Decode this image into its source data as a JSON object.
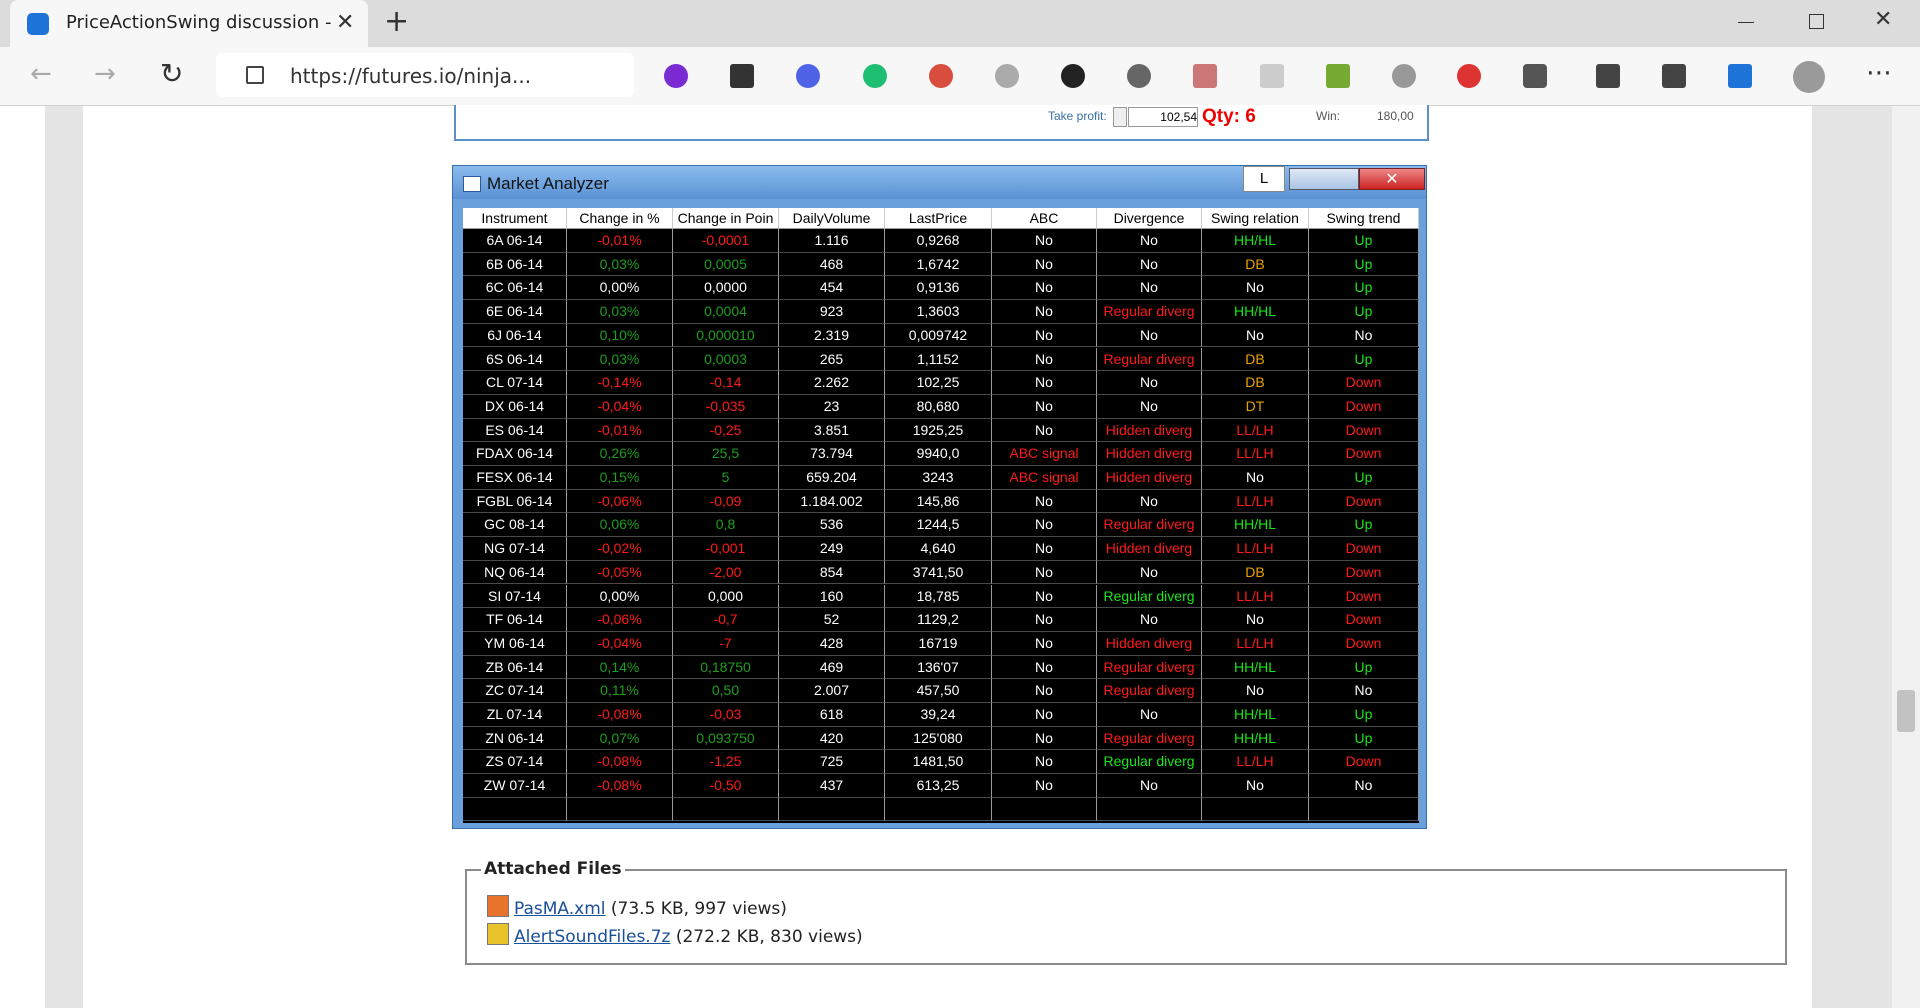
{
  "browser": {
    "tab_title": "PriceActionSwing discussion - fu",
    "url": "https://futures.io/ninja..."
  },
  "order_panel": {
    "take_profit_label": "Take profit:",
    "take_profit": "102,54",
    "qty": "Qty: 6",
    "win_label": "Win:",
    "win": "180,00"
  },
  "market_analyzer": {
    "title": "Market Analyzer",
    "button": "L",
    "columns": [
      "Instrument",
      "Change in %",
      "Change in Poin",
      "DailyVolume",
      "LastPrice",
      "ABC",
      "Divergence",
      "Swing relation",
      "Swing trend"
    ],
    "rows": [
      [
        "6A 06-14",
        {
          "text": "-0,01%",
          "color": "#ff1a1a"
        },
        {
          "text": "-0,0001",
          "color": "#ff1a1a"
        },
        "1.116",
        "0,9268",
        "No",
        "No",
        {
          "text": "HH/HL",
          "color": "#19e619"
        },
        {
          "text": "Up",
          "color": "#19e619"
        }
      ],
      [
        "6B 06-14",
        {
          "text": "0,03%",
          "color": "#1e9e1e"
        },
        {
          "text": "0,0005",
          "color": "#1e9e1e"
        },
        "468",
        "1,6742",
        "No",
        "No",
        {
          "text": "DB",
          "color": "#e8a200"
        },
        {
          "text": "Up",
          "color": "#19e619"
        }
      ],
      [
        "6C 06-14",
        "0,00%",
        "0,0000",
        "454",
        "0,9136",
        "No",
        "No",
        "No",
        {
          "text": "Up",
          "color": "#19e619"
        }
      ],
      [
        "6E 06-14",
        {
          "text": "0,03%",
          "color": "#1e9e1e"
        },
        {
          "text": "0,0004",
          "color": "#1e9e1e"
        },
        "923",
        "1,3603",
        "No",
        {
          "text": "Regular diverg",
          "color": "#ff1a1a"
        },
        {
          "text": "HH/HL",
          "color": "#19e619"
        },
        {
          "text": "Up",
          "color": "#19e619"
        }
      ],
      [
        "6J 06-14",
        {
          "text": "0,10%",
          "color": "#1e9e1e"
        },
        {
          "text": "0,000010",
          "color": "#1e9e1e"
        },
        "2.319",
        "0,009742",
        "No",
        "No",
        "No",
        "No"
      ],
      [
        "6S 06-14",
        {
          "text": "0,03%",
          "color": "#1e9e1e"
        },
        {
          "text": "0,0003",
          "color": "#1e9e1e"
        },
        "265",
        "1,1152",
        "No",
        {
          "text": "Regular diverg",
          "color": "#ff1a1a"
        },
        {
          "text": "DB",
          "color": "#e8a200"
        },
        {
          "text": "Up",
          "color": "#19e619"
        }
      ],
      [
        "CL 07-14",
        {
          "text": "-0,14%",
          "color": "#ff1a1a"
        },
        {
          "text": "-0,14",
          "color": "#ff1a1a"
        },
        "2.262",
        "102,25",
        "No",
        "No",
        {
          "text": "DB",
          "color": "#e8a200"
        },
        {
          "text": "Down",
          "color": "#ff1a1a"
        }
      ],
      [
        "DX 06-14",
        {
          "text": "-0,04%",
          "color": "#ff1a1a"
        },
        {
          "text": "-0,035",
          "color": "#ff1a1a"
        },
        "23",
        "80,680",
        "No",
        "No",
        {
          "text": "DT",
          "color": "#e8a200"
        },
        {
          "text": "Down",
          "color": "#ff1a1a"
        }
      ],
      [
        "ES 06-14",
        {
          "text": "-0,01%",
          "color": "#ff1a1a"
        },
        {
          "text": "-0,25",
          "color": "#ff1a1a"
        },
        "3.851",
        "1925,25",
        "No",
        {
          "text": "Hidden diverg",
          "color": "#ff1a1a"
        },
        {
          "text": "LL/LH",
          "color": "#ff1a1a"
        },
        {
          "text": "Down",
          "color": "#ff1a1a"
        }
      ],
      [
        "FDAX 06-14",
        {
          "text": "0,26%",
          "color": "#1e9e1e"
        },
        {
          "text": "25,5",
          "color": "#1e9e1e"
        },
        "73.794",
        "9940,0",
        {
          "text": "ABC signal",
          "color": "#ff1a1a"
        },
        {
          "text": "Hidden diverg",
          "color": "#ff1a1a"
        },
        {
          "text": "LL/LH",
          "color": "#ff1a1a"
        },
        {
          "text": "Down",
          "color": "#ff1a1a"
        }
      ],
      [
        "FESX 06-14",
        {
          "text": "0,15%",
          "color": "#1e9e1e"
        },
        {
          "text": "5",
          "color": "#1e9e1e"
        },
        "659.204",
        "3243",
        {
          "text": "ABC signal",
          "color": "#ff1a1a"
        },
        {
          "text": "Hidden diverg",
          "color": "#ff1a1a"
        },
        "No",
        {
          "text": "Up",
          "color": "#19e619"
        }
      ],
      [
        "FGBL 06-14",
        {
          "text": "-0,06%",
          "color": "#ff1a1a"
        },
        {
          "text": "-0,09",
          "color": "#ff1a1a"
        },
        "1.184.002",
        "145,86",
        "No",
        "No",
        {
          "text": "LL/LH",
          "color": "#ff1a1a"
        },
        {
          "text": "Down",
          "color": "#ff1a1a"
        }
      ],
      [
        "GC 08-14",
        {
          "text": "0,06%",
          "color": "#1e9e1e"
        },
        {
          "text": "0,8",
          "color": "#1e9e1e"
        },
        "536",
        "1244,5",
        "No",
        {
          "text": "Regular diverg",
          "color": "#ff1a1a"
        },
        {
          "text": "HH/HL",
          "color": "#19e619"
        },
        {
          "text": "Up",
          "color": "#19e619"
        }
      ],
      [
        "NG 07-14",
        {
          "text": "-0,02%",
          "color": "#ff1a1a"
        },
        {
          "text": "-0,001",
          "color": "#ff1a1a"
        },
        "249",
        "4,640",
        "No",
        {
          "text": "Hidden diverg",
          "color": "#ff1a1a"
        },
        {
          "text": "LL/LH",
          "color": "#ff1a1a"
        },
        {
          "text": "Down",
          "color": "#ff1a1a"
        }
      ],
      [
        "NQ 06-14",
        {
          "text": "-0,05%",
          "color": "#ff1a1a"
        },
        {
          "text": "-2,00",
          "color": "#ff1a1a"
        },
        "854",
        "3741,50",
        "No",
        "No",
        {
          "text": "DB",
          "color": "#e8a200"
        },
        {
          "text": "Down",
          "color": "#ff1a1a"
        }
      ],
      [
        "SI 07-14",
        "0,00%",
        "0,000",
        "160",
        "18,785",
        "No",
        {
          "text": "Regular diverg",
          "color": "#19e619"
        },
        {
          "text": "LL/LH",
          "color": "#ff1a1a"
        },
        {
          "text": "Down",
          "color": "#ff1a1a"
        }
      ],
      [
        "TF 06-14",
        {
          "text": "-0,06%",
          "color": "#ff1a1a"
        },
        {
          "text": "-0,7",
          "color": "#ff1a1a"
        },
        "52",
        "1129,2",
        "No",
        "No",
        "No",
        {
          "text": "Down",
          "color": "#ff1a1a"
        }
      ],
      [
        "YM 06-14",
        {
          "text": "-0,04%",
          "color": "#ff1a1a"
        },
        {
          "text": "-7",
          "color": "#ff1a1a"
        },
        "428",
        "16719",
        "No",
        {
          "text": "Hidden diverg",
          "color": "#ff1a1a"
        },
        {
          "text": "LL/LH",
          "color": "#ff1a1a"
        },
        {
          "text": "Down",
          "color": "#ff1a1a"
        }
      ],
      [
        "ZB 06-14",
        {
          "text": "0,14%",
          "color": "#1e9e1e"
        },
        {
          "text": "0,18750",
          "color": "#1e9e1e"
        },
        "469",
        "136'07",
        "No",
        {
          "text": "Regular diverg",
          "color": "#ff1a1a"
        },
        {
          "text": "HH/HL",
          "color": "#19e619"
        },
        {
          "text": "Up",
          "color": "#19e619"
        }
      ],
      [
        "ZC 07-14",
        {
          "text": "0,11%",
          "color": "#1e9e1e"
        },
        {
          "text": "0,50",
          "color": "#1e9e1e"
        },
        "2.007",
        "457,50",
        "No",
        {
          "text": "Regular diverg",
          "color": "#ff1a1a"
        },
        "No",
        "No"
      ],
      [
        "ZL 07-14",
        {
          "text": "-0,08%",
          "color": "#ff1a1a"
        },
        {
          "text": "-0,03",
          "color": "#ff1a1a"
        },
        "618",
        "39,24",
        "No",
        "No",
        {
          "text": "HH/HL",
          "color": "#19e619"
        },
        {
          "text": "Up",
          "color": "#19e619"
        }
      ],
      [
        "ZN 06-14",
        {
          "text": "0,07%",
          "color": "#1e9e1e"
        },
        {
          "text": "0,093750",
          "color": "#1e9e1e"
        },
        "420",
        "125'080",
        "No",
        {
          "text": "Regular diverg",
          "color": "#ff1a1a"
        },
        {
          "text": "HH/HL",
          "color": "#19e619"
        },
        {
          "text": "Up",
          "color": "#19e619"
        }
      ],
      [
        "ZS 07-14",
        {
          "text": "-0,08%",
          "color": "#ff1a1a"
        },
        {
          "text": "-1,25",
          "color": "#ff1a1a"
        },
        "725",
        "1481,50",
        "No",
        {
          "text": "Regular diverg",
          "color": "#19e619"
        },
        {
          "text": "LL/LH",
          "color": "#ff1a1a"
        },
        {
          "text": "Down",
          "color": "#ff1a1a"
        }
      ],
      [
        "ZW 07-14",
        {
          "text": "-0,08%",
          "color": "#ff1a1a"
        },
        {
          "text": "-0,50",
          "color": "#ff1a1a"
        },
        "437",
        "613,25",
        "No",
        "No",
        "No",
        "No"
      ]
    ]
  },
  "attachments": {
    "title": "Attached Files",
    "files": [
      {
        "name": "PasMA.xml",
        "info": "(73.5 KB, 997 views)"
      },
      {
        "name": "AlertSoundFiles.7z",
        "info": "(272.2 KB, 830 views)"
      }
    ]
  }
}
